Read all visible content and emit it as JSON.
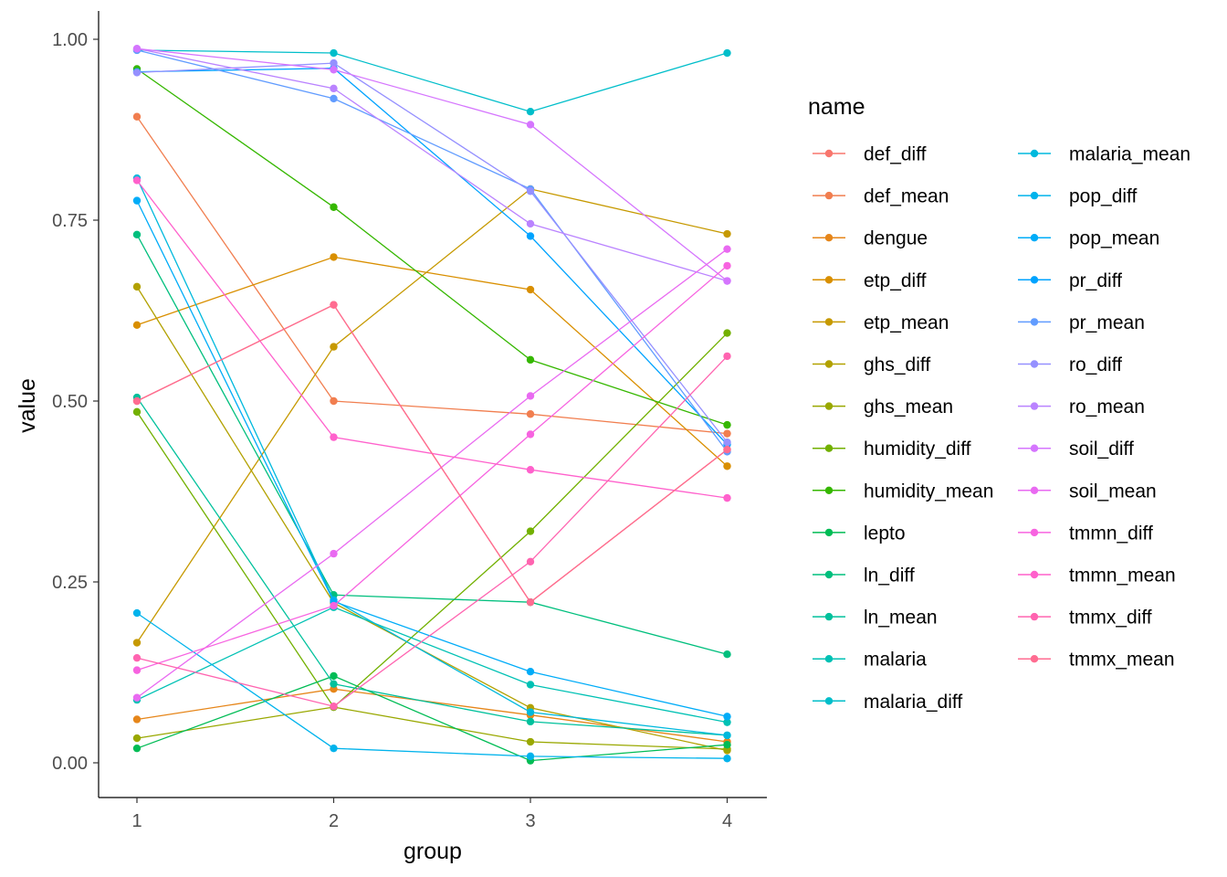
{
  "chart_data": {
    "type": "line",
    "xlabel": "group",
    "ylabel": "value",
    "x": [
      1,
      2,
      3,
      4
    ],
    "x_ticks": [
      "1",
      "2",
      "3",
      "4"
    ],
    "y_ticks": [
      "0.00",
      "0.25",
      "0.50",
      "0.75",
      "1.00"
    ],
    "ylim": [
      -0.05,
      1.04
    ],
    "xlim": [
      0.8,
      4.2
    ],
    "grid": false,
    "legend": {
      "title": "name",
      "position": "right",
      "columns": 2
    },
    "series": [
      {
        "name": "def_diff",
        "color": "#F8766D",
        "values": [
          0.5,
          0.633,
          0.222,
          0.433
        ]
      },
      {
        "name": "def_mean",
        "color": "#F17E4F",
        "values": [
          0.893,
          0.5,
          0.482,
          0.455
        ]
      },
      {
        "name": "dengue",
        "color": "#E6861A",
        "values": [
          0.06,
          0.102,
          0.066,
          0.029
        ]
      },
      {
        "name": "etp_diff",
        "color": "#D98F00",
        "values": [
          0.605,
          0.699,
          0.654,
          0.41
        ]
      },
      {
        "name": "etp_mean",
        "color": "#C69900",
        "values": [
          0.166,
          0.575,
          0.793,
          0.731
        ]
      },
      {
        "name": "ghs_diff",
        "color": "#B2A100",
        "values": [
          0.658,
          0.221,
          0.076,
          0.017
        ]
      },
      {
        "name": "ghs_mean",
        "color": "#99A800",
        "values": [
          0.034,
          0.077,
          0.029,
          0.019
        ]
      },
      {
        "name": "humidity_diff",
        "color": "#72B000",
        "values": [
          0.485,
          0.077,
          0.32,
          0.594
        ]
      },
      {
        "name": "humidity_mean",
        "color": "#35B700",
        "values": [
          0.959,
          0.768,
          0.557,
          0.467
        ]
      },
      {
        "name": "lepto",
        "color": "#00BC55",
        "values": [
          0.02,
          0.12,
          0.003,
          0.025
        ]
      },
      {
        "name": "ln_diff",
        "color": "#00BF7D",
        "values": [
          0.73,
          0.232,
          0.222,
          0.15
        ]
      },
      {
        "name": "ln_mean",
        "color": "#00C19C",
        "values": [
          0.505,
          0.109,
          0.057,
          0.038
        ]
      },
      {
        "name": "malaria",
        "color": "#00C1B4",
        "values": [
          0.087,
          0.215,
          0.108,
          0.056
        ]
      },
      {
        "name": "malaria_diff",
        "color": "#00BECA",
        "values": [
          0.985,
          0.981,
          0.9,
          0.981
        ]
      },
      {
        "name": "malaria_mean",
        "color": "#00B9DD",
        "values": [
          0.808,
          0.225,
          0.07,
          0.038
        ]
      },
      {
        "name": "pop_diff",
        "color": "#00B3EC",
        "values": [
          0.207,
          0.02,
          0.009,
          0.006
        ]
      },
      {
        "name": "pop_mean",
        "color": "#00ACF8",
        "values": [
          0.777,
          0.223,
          0.126,
          0.064
        ]
      },
      {
        "name": "pr_diff",
        "color": "#00A3FF",
        "values": [
          0.955,
          0.96,
          0.728,
          0.44
        ]
      },
      {
        "name": "pr_mean",
        "color": "#619CFF",
        "values": [
          0.985,
          0.918,
          0.793,
          0.43
        ]
      },
      {
        "name": "ro_diff",
        "color": "#9590FF",
        "values": [
          0.954,
          0.967,
          0.79,
          0.443
        ]
      },
      {
        "name": "ro_mean",
        "color": "#BA83FF",
        "values": [
          0.987,
          0.932,
          0.745,
          0.666
        ]
      },
      {
        "name": "soil_diff",
        "color": "#D575FE",
        "values": [
          0.987,
          0.958,
          0.882,
          0.666
        ]
      },
      {
        "name": "soil_mean",
        "color": "#E96AF1",
        "values": [
          0.09,
          0.289,
          0.507,
          0.71
        ]
      },
      {
        "name": "tmmn_diff",
        "color": "#F763E0",
        "values": [
          0.128,
          0.217,
          0.454,
          0.687
        ]
      },
      {
        "name": "tmmn_mean",
        "color": "#FF61CC",
        "values": [
          0.805,
          0.45,
          0.405,
          0.366
        ]
      },
      {
        "name": "tmmx_diff",
        "color": "#FF64B0",
        "values": [
          0.145,
          0.078,
          0.278,
          0.562
        ]
      },
      {
        "name": "tmmx_mean",
        "color": "#FF6C91",
        "values": [
          0.5,
          0.633,
          0.222,
          0.433
        ]
      }
    ]
  }
}
